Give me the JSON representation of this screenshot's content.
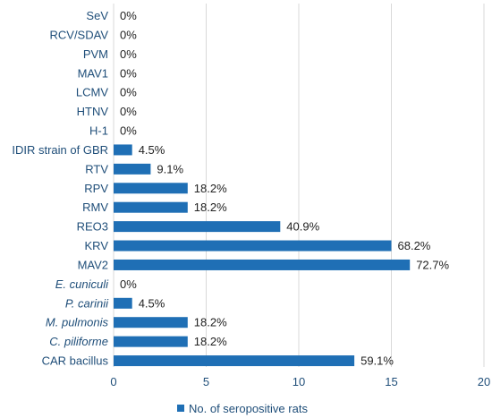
{
  "chart_data": {
    "type": "bar",
    "orientation": "horizontal",
    "categories": [
      {
        "label": "SeV",
        "italic": false
      },
      {
        "label": "RCV/SDAV",
        "italic": false
      },
      {
        "label": "PVM",
        "italic": false
      },
      {
        "label": "MAV1",
        "italic": false
      },
      {
        "label": "LCMV",
        "italic": false
      },
      {
        "label": "HTNV",
        "italic": false
      },
      {
        "label": "H-1",
        "italic": false
      },
      {
        "label": "IDIR strain of GBR",
        "italic": false
      },
      {
        "label": "RTV",
        "italic": false
      },
      {
        "label": "RPV",
        "italic": false
      },
      {
        "label": "RMV",
        "italic": false
      },
      {
        "label": "REO3",
        "italic": false
      },
      {
        "label": "KRV",
        "italic": false
      },
      {
        "label": "MAV2",
        "italic": false
      },
      {
        "label": "E. cuniculi",
        "italic": true
      },
      {
        "label": "P. carinii",
        "italic": true
      },
      {
        "label": "M. pulmonis",
        "italic": true
      },
      {
        "label": "C. piliforme",
        "italic": true
      },
      {
        "label": "CAR bacillus",
        "italic": false
      }
    ],
    "series": [
      {
        "name": "No. of seropositive rats",
        "values": [
          0,
          0,
          0,
          0,
          0,
          0,
          0,
          1,
          2,
          4,
          4,
          9,
          15,
          16,
          0,
          1,
          4,
          4,
          13
        ],
        "data_labels": [
          "0%",
          "0%",
          "0%",
          "0%",
          "0%",
          "0%",
          "0%",
          "4.5%",
          "9.1%",
          "18.2%",
          "18.2%",
          "40.9%",
          "68.2%",
          "72.7%",
          "0%",
          "4.5%",
          "18.2%",
          "18.2%",
          "59.1%"
        ]
      }
    ],
    "xlim": [
      0,
      20
    ],
    "xticks": [
      0,
      5,
      10,
      15,
      20
    ],
    "xtick_labels": [
      "0",
      "5",
      "10",
      "15",
      "20"
    ],
    "grid": "vertical",
    "legend_position": "bottom",
    "colors": {
      "bar": "#1f6fb5",
      "axis_text": "#1f4e79"
    }
  }
}
